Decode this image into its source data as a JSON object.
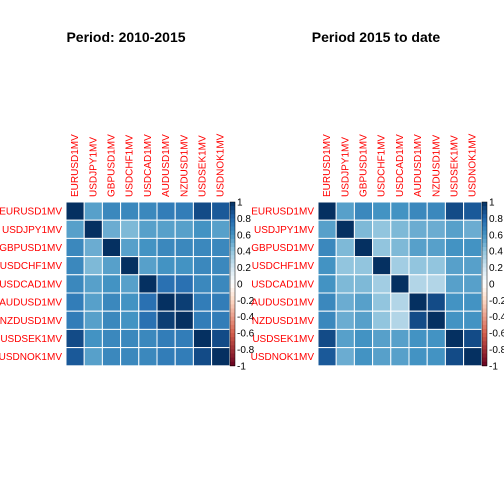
{
  "colors": {
    "negative_max": "#67001f",
    "zero": "#ffffff",
    "positive_max": "#053061",
    "cell_border": "#ffffff",
    "label_color": "#ff0000"
  },
  "chart_data": [
    {
      "type": "heatmap",
      "title": "Period: 2010-2015",
      "row_labels": [
        "EURUSD1MV",
        "USDJPY1MV",
        "GBPUSD1MV",
        "USDCHF1MV",
        "USDCAD1MV",
        "AUDUSD1MV",
        "NZDUSD1MV",
        "USDSEK1MV",
        "USDNOK1MV"
      ],
      "col_labels": [
        "EURUSD1MV",
        "USDJPY1MV",
        "GBPUSD1MV",
        "USDCHF1MV",
        "USDCAD1MV",
        "AUDUSD1MV",
        "NZDUSD1MV",
        "USDSEK1MV",
        "USDNOK1MV"
      ],
      "values": [
        [
          1.0,
          0.55,
          0.65,
          0.65,
          0.65,
          0.7,
          0.7,
          0.9,
          0.85
        ],
        [
          0.55,
          1.0,
          0.5,
          0.45,
          0.55,
          0.55,
          0.55,
          0.6,
          0.55
        ],
        [
          0.65,
          0.5,
          1.0,
          0.55,
          0.6,
          0.65,
          0.65,
          0.65,
          0.65
        ],
        [
          0.65,
          0.45,
          0.55,
          1.0,
          0.55,
          0.6,
          0.6,
          0.65,
          0.65
        ],
        [
          0.65,
          0.55,
          0.6,
          0.55,
          1.0,
          0.75,
          0.75,
          0.65,
          0.65
        ],
        [
          0.7,
          0.55,
          0.65,
          0.6,
          0.75,
          1.0,
          0.95,
          0.7,
          0.7
        ],
        [
          0.7,
          0.55,
          0.65,
          0.6,
          0.75,
          0.95,
          1.0,
          0.7,
          0.7
        ],
        [
          0.9,
          0.6,
          0.65,
          0.65,
          0.65,
          0.7,
          0.7,
          1.0,
          0.9
        ],
        [
          0.85,
          0.55,
          0.65,
          0.65,
          0.65,
          0.7,
          0.7,
          0.9,
          1.0
        ]
      ],
      "color_range": [
        -1,
        1
      ],
      "colorbar_ticks": [
        "1",
        "0.8",
        "0.6",
        "0.4",
        "0.2",
        "0",
        "-0.2",
        "-0.4",
        "-0.6",
        "-0.8",
        "-1"
      ]
    },
    {
      "type": "heatmap",
      "title": "Period 2015 to date",
      "row_labels": [
        "EURUSD1MV",
        "USDJPY1MV",
        "GBPUSD1MV",
        "USDCHF1MV",
        "USDCAD1MV",
        "AUDUSD1MV",
        "NZDUSD1MV",
        "USDSEK1MV",
        "USDNOK1MV"
      ],
      "col_labels": [
        "EURUSD1MV",
        "USDJPY1MV",
        "GBPUSD1MV",
        "USDCHF1MV",
        "USDCAD1MV",
        "AUDUSD1MV",
        "NZDUSD1MV",
        "USDSEK1MV",
        "USDNOK1MV"
      ],
      "values": [
        [
          1.0,
          0.55,
          0.65,
          0.6,
          0.6,
          0.65,
          0.65,
          0.9,
          0.85
        ],
        [
          0.55,
          1.0,
          0.45,
          0.4,
          0.45,
          0.5,
          0.5,
          0.55,
          0.5
        ],
        [
          0.65,
          0.45,
          1.0,
          0.4,
          0.45,
          0.55,
          0.55,
          0.6,
          0.6
        ],
        [
          0.6,
          0.4,
          0.4,
          1.0,
          0.35,
          0.4,
          0.4,
          0.55,
          0.55
        ],
        [
          0.6,
          0.45,
          0.45,
          0.35,
          1.0,
          0.3,
          0.3,
          0.55,
          0.55
        ],
        [
          0.65,
          0.5,
          0.55,
          0.4,
          0.3,
          1.0,
          0.9,
          0.6,
          0.6
        ],
        [
          0.65,
          0.5,
          0.55,
          0.4,
          0.3,
          0.9,
          1.0,
          0.6,
          0.6
        ],
        [
          0.9,
          0.55,
          0.6,
          0.55,
          0.55,
          0.6,
          0.6,
          1.0,
          0.9
        ],
        [
          0.85,
          0.5,
          0.6,
          0.55,
          0.55,
          0.6,
          0.6,
          0.9,
          1.0
        ]
      ],
      "color_range": [
        -1,
        1
      ],
      "colorbar_ticks": [
        "1",
        "0.8",
        "0.6",
        "0.4",
        "0.2",
        "0",
        "-0.2",
        "-0.4",
        "-0.6",
        "-0.8",
        "-1"
      ]
    }
  ]
}
